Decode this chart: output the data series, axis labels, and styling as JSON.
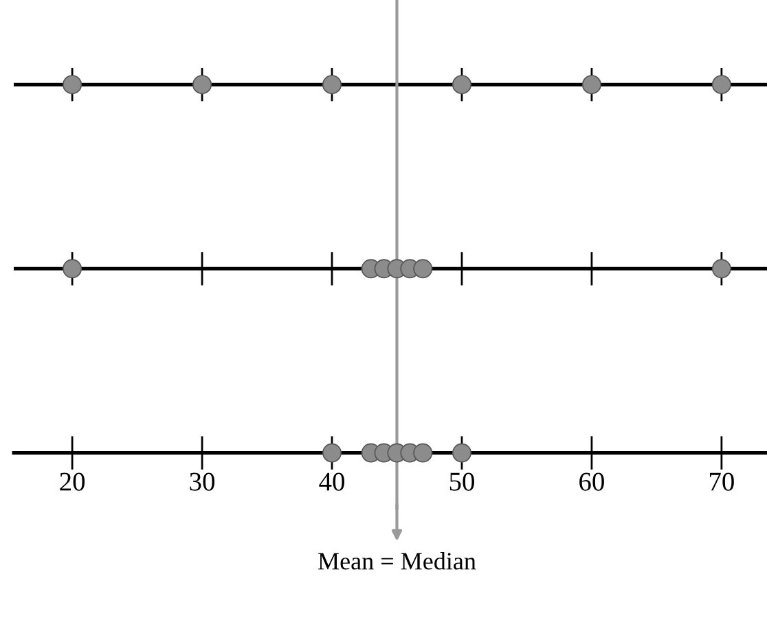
{
  "chart_data": {
    "type": "scatter",
    "orientation": "horizontal",
    "marker": "circle",
    "categories": [
      null,
      null,
      null
    ],
    "xlim": [
      15.5,
      73.5
    ],
    "xticks": [
      20,
      30,
      40,
      50,
      60,
      70
    ],
    "tick_labels": "x",
    "series": [
      {
        "color": "#8c8c8c",
        "values": [
          20,
          20,
          40
        ]
      },
      {
        "color": "#8c8c8c",
        "values": [
          30,
          43,
          43
        ]
      },
      {
        "color": "#8c8c8c",
        "values": [
          40,
          44,
          44
        ]
      },
      {
        "color": "#8c8c8c",
        "values": [
          50,
          45,
          45
        ]
      },
      {
        "color": "#8c8c8c",
        "values": [
          60,
          46,
          46
        ]
      },
      {
        "color": "#8c8c8c",
        "values": [
          70,
          47,
          47
        ]
      },
      {
        "color": "#8c8c8c",
        "values": [
          null,
          70,
          50
        ]
      }
    ],
    "ref_lines": [
      {
        "axis": "x",
        "value": 45,
        "color": "#9a9a9a",
        "label": "Mean = Median"
      }
    ]
  }
}
